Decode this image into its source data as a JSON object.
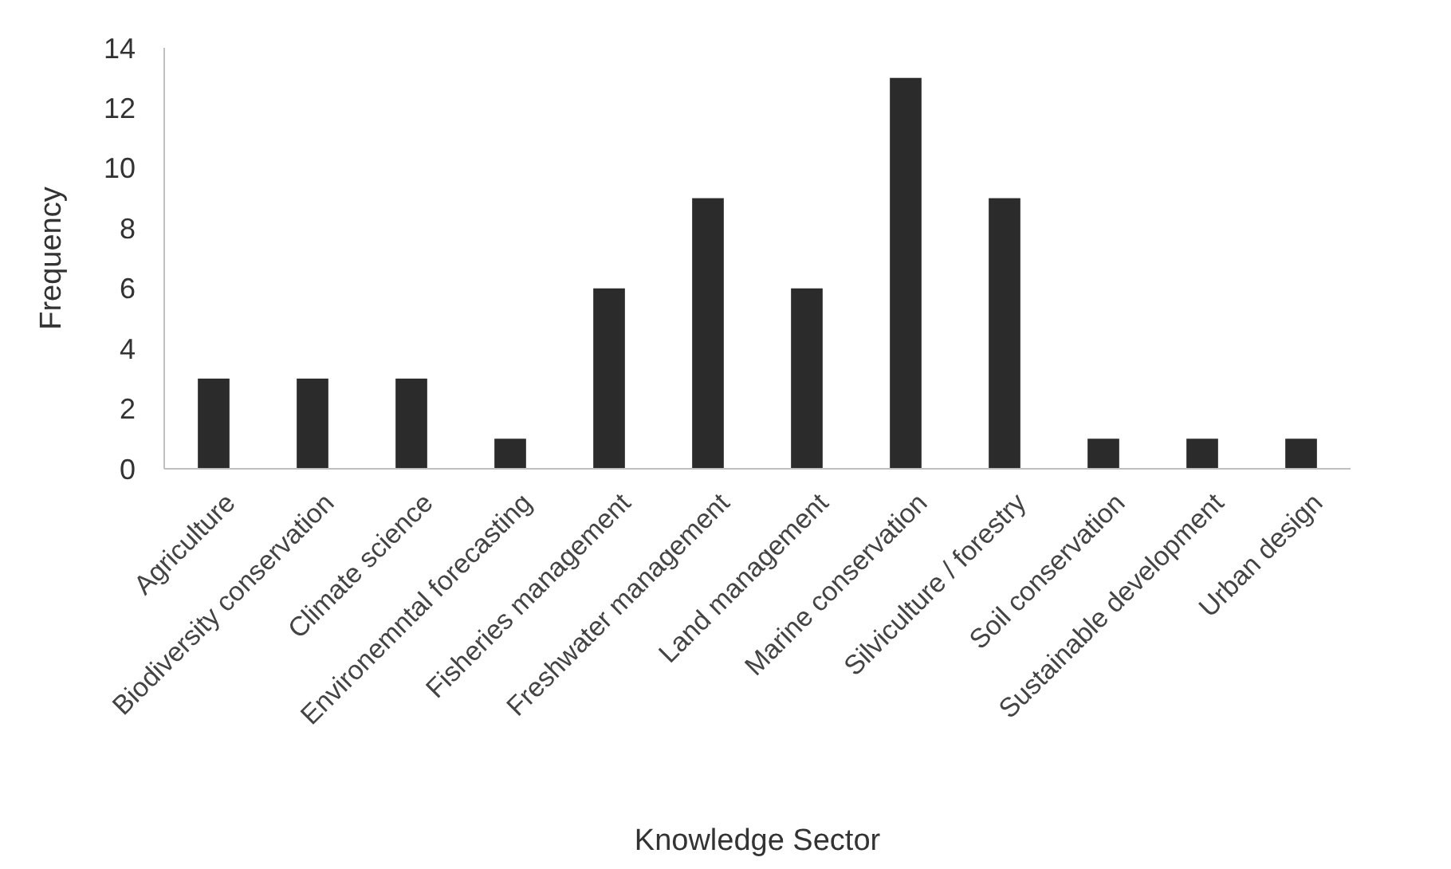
{
  "chart_data": {
    "type": "bar",
    "xlabel": "Knowledge Sector",
    "ylabel": "Frequency",
    "categories": [
      "Agriculture",
      "Biodiversity conservation",
      "Climate science",
      "Environemntal forecasting",
      "Fisheries management",
      "Freshwater management",
      "Land management",
      "Marine conservation",
      "Silviculture / forestry",
      "Soil conservation",
      "Sustainable development",
      "Urban design"
    ],
    "values": [
      3,
      3,
      3,
      1,
      6,
      9,
      6,
      13,
      9,
      1,
      1,
      1
    ],
    "color": "#2b2b2b",
    "ylim": [
      0,
      14
    ],
    "yticks": [
      0,
      2,
      4,
      6,
      8,
      10,
      12,
      14
    ],
    "grid": false
  }
}
